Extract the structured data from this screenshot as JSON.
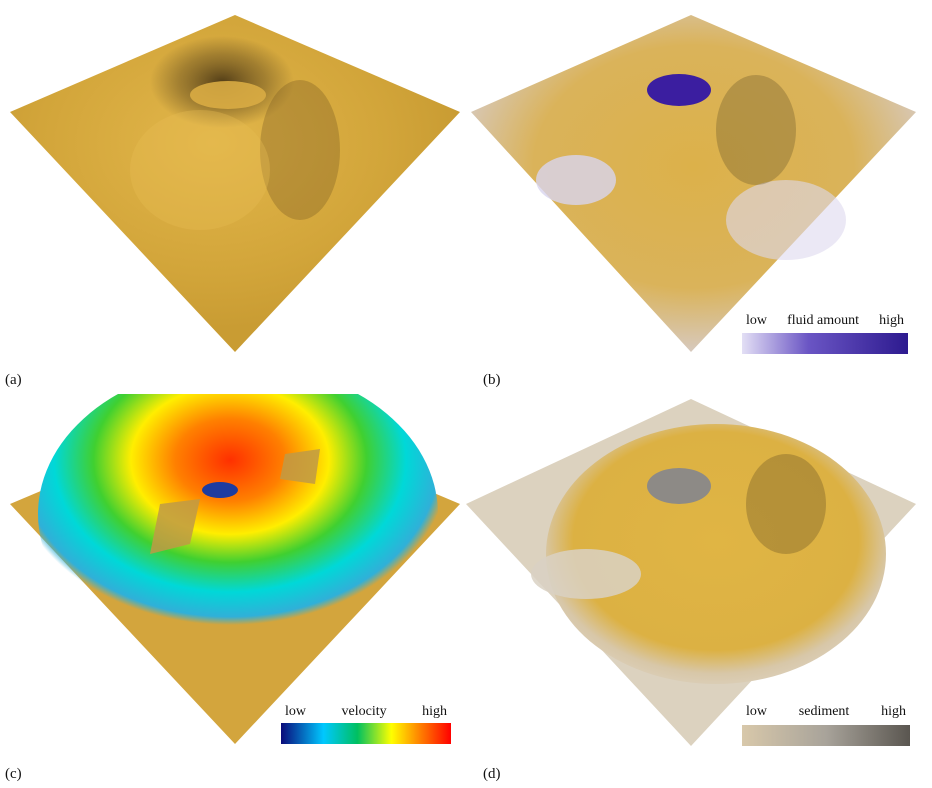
{
  "figure": {
    "panels": [
      {
        "label": "(a)",
        "surface": "terrain",
        "legend": null
      },
      {
        "label": "(b)",
        "surface": "fluid",
        "legend": {
          "low": "low",
          "title": "fluid amount",
          "high": "high",
          "colors": [
            "#e3dff5",
            "#2d1a8f"
          ]
        }
      },
      {
        "label": "(c)",
        "surface": "velocity",
        "legend": {
          "low": "low",
          "title": "velocity",
          "high": "high",
          "colors": [
            "#0a0a7a",
            "#00c8ff",
            "#00c060",
            "#ffff00",
            "#ff7f00",
            "#ff0000"
          ]
        }
      },
      {
        "label": "(d)",
        "surface": "sediment",
        "legend": {
          "low": "low",
          "title": "sediment",
          "high": "high",
          "colors": [
            "#d8c8aa",
            "#a8a39a",
            "#5a5650"
          ]
        }
      }
    ],
    "terrain_color": "#d6a83c"
  }
}
